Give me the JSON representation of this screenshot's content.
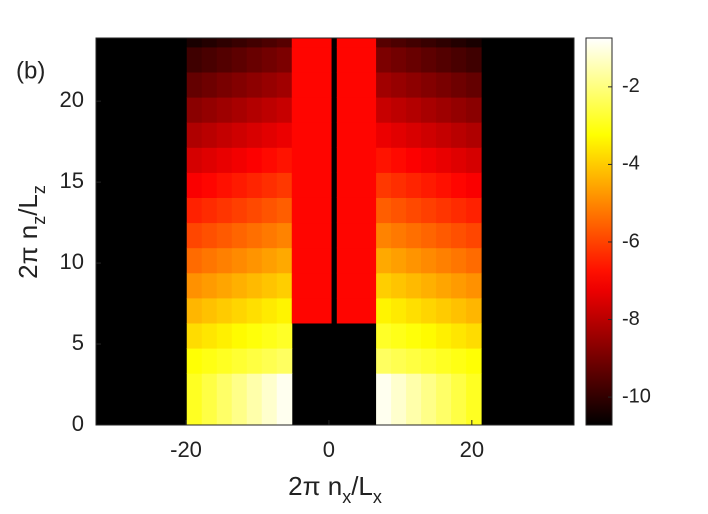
{
  "chart_data": {
    "type": "heatmap",
    "title": "(b)",
    "xlabel": [
      "2π n",
      "x",
      "/L",
      "x"
    ],
    "ylabel": [
      "2π n",
      "z",
      "/L",
      "z"
    ],
    "xlim": [
      -32.6,
      34.3
    ],
    "ylim": [
      0,
      23.9
    ],
    "xticks": [
      -20,
      0,
      20
    ],
    "yticks": [
      0,
      5,
      10,
      15,
      20
    ],
    "background": "#000000",
    "colormap": "hot",
    "clim": [
      -10.72,
      -0.74
    ],
    "cticks": [
      -2,
      -4,
      -6,
      -8,
      -10
    ],
    "x_edges": [
      -19.9,
      -17.8,
      -15.7,
      -13.6,
      -11.5,
      -9.4,
      -7.3,
      -5.2,
      0.3,
      1.1,
      6.6,
      8.7,
      10.8,
      12.9,
      15.0,
      17.1,
      19.2,
      21.3
    ],
    "y_edges": [
      0,
      3.2,
      4.75,
      6.3,
      7.85,
      9.4,
      10.95,
      12.5,
      14.05,
      15.6,
      17.15,
      18.7,
      20.25,
      21.8,
      23.35,
      23.9
    ],
    "z": [
      [
        -2.9,
        -2.57,
        -2.23,
        -1.9,
        -1.57,
        -1.23,
        -0.9,
        null,
        null,
        null,
        -0.9,
        -1.23,
        -1.57,
        -1.9,
        -2.23,
        -2.57,
        -2.9
      ],
      [
        -3.2,
        -3.05,
        -2.9,
        -2.75,
        -2.6,
        -2.45,
        -2.3,
        null,
        null,
        null,
        -2.3,
        -2.45,
        -2.6,
        -2.75,
        -2.9,
        -3.05,
        -3.2
      ],
      [
        -3.75,
        -3.6,
        -3.45,
        -3.3,
        -3.15,
        -3.0,
        -2.85,
        null,
        null,
        null,
        -2.85,
        -3.0,
        -3.15,
        -3.3,
        -3.45,
        -3.6,
        -3.75
      ],
      [
        -4.3,
        -4.15,
        -4.0,
        -3.85,
        -3.7,
        -3.55,
        -3.4,
        -6.9,
        null,
        -6.9,
        -3.4,
        -3.55,
        -3.7,
        -3.85,
        -4.0,
        -4.15,
        -4.3
      ],
      [
        -4.85,
        -4.7,
        -4.55,
        -4.4,
        -4.25,
        -4.1,
        -3.95,
        -6.9,
        null,
        -6.9,
        -3.95,
        -4.1,
        -4.25,
        -4.4,
        -4.55,
        -4.7,
        -4.85
      ],
      [
        -5.4,
        -5.25,
        -5.1,
        -4.95,
        -4.8,
        -4.65,
        -4.5,
        -6.9,
        null,
        -6.9,
        -4.5,
        -4.65,
        -4.8,
        -4.95,
        -5.1,
        -5.25,
        -5.4
      ],
      [
        -5.95,
        -5.8,
        -5.65,
        -5.5,
        -5.35,
        -5.2,
        -5.05,
        -6.9,
        null,
        -6.9,
        -5.05,
        -5.2,
        -5.35,
        -5.5,
        -5.65,
        -5.8,
        -5.95
      ],
      [
        -6.5,
        -6.35,
        -6.2,
        -6.05,
        -5.9,
        -5.75,
        -5.6,
        -6.9,
        null,
        -6.9,
        -5.6,
        -5.75,
        -5.9,
        -6.05,
        -6.2,
        -6.35,
        -6.5
      ],
      [
        -7.05,
        -6.9,
        -6.75,
        -6.6,
        -6.45,
        -6.3,
        -6.15,
        -6.9,
        null,
        -6.9,
        -6.15,
        -6.3,
        -6.45,
        -6.6,
        -6.75,
        -6.9,
        -7.05
      ],
      [
        -7.6,
        -7.45,
        -7.3,
        -7.15,
        -7.0,
        -6.85,
        -6.7,
        -6.9,
        null,
        -6.9,
        -6.7,
        -6.85,
        -7.0,
        -7.15,
        -7.3,
        -7.45,
        -7.6
      ],
      [
        -8.15,
        -8.0,
        -7.85,
        -7.7,
        -7.55,
        -7.4,
        -7.25,
        -6.9,
        null,
        -6.9,
        -7.25,
        -7.4,
        -7.55,
        -7.7,
        -7.85,
        -8.0,
        -8.15
      ],
      [
        -8.7,
        -8.55,
        -8.4,
        -8.25,
        -8.1,
        -7.95,
        -7.8,
        -6.9,
        null,
        -6.9,
        -7.8,
        -7.95,
        -8.1,
        -8.25,
        -8.4,
        -8.55,
        -8.7
      ],
      [
        -9.25,
        -9.1,
        -8.95,
        -8.8,
        -8.65,
        -8.5,
        -8.35,
        -6.9,
        null,
        -6.9,
        -8.35,
        -8.5,
        -8.65,
        -8.8,
        -8.95,
        -9.1,
        -9.25
      ],
      [
        -9.8,
        -9.65,
        -9.5,
        -9.35,
        -9.2,
        -9.05,
        -8.9,
        -6.9,
        null,
        -6.9,
        -8.9,
        -9.05,
        -9.2,
        -9.35,
        -9.5,
        -9.65,
        -9.8
      ],
      [
        -10.35,
        -10.2,
        -10.05,
        -9.9,
        -9.75,
        -9.6,
        -9.45,
        -6.9,
        null,
        -6.9,
        -9.45,
        -9.6,
        -9.75,
        -9.9,
        -10.05,
        -10.2,
        -10.35
      ]
    ]
  }
}
